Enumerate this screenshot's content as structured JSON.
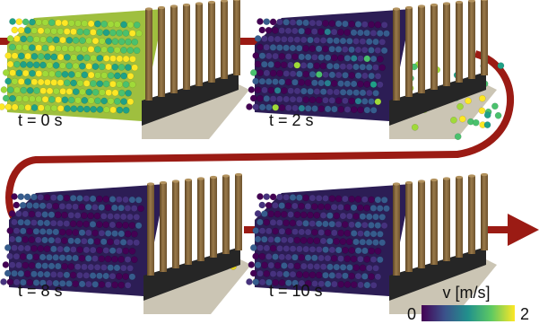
{
  "panels": [
    {
      "time_label": "t = 0 s",
      "state": "initial"
    },
    {
      "time_label": "t = 2 s",
      "state": "flowing"
    },
    {
      "time_label": "t = 8 s",
      "state": "settling"
    },
    {
      "time_label": "t = 10 s",
      "state": "jammed"
    }
  ],
  "colorbar": {
    "title": "v [m/s]",
    "min_label": "0",
    "max_label": "2",
    "colormap": [
      "#440154",
      "#3b528b",
      "#21918c",
      "#5ec962",
      "#fde725"
    ]
  },
  "colors": {
    "arrow": "#9b1b14",
    "floor": "#cbc5b4",
    "base_block": "#262626",
    "pillar": "#8a6a3c",
    "pillar_dark": "#5c4424"
  }
}
